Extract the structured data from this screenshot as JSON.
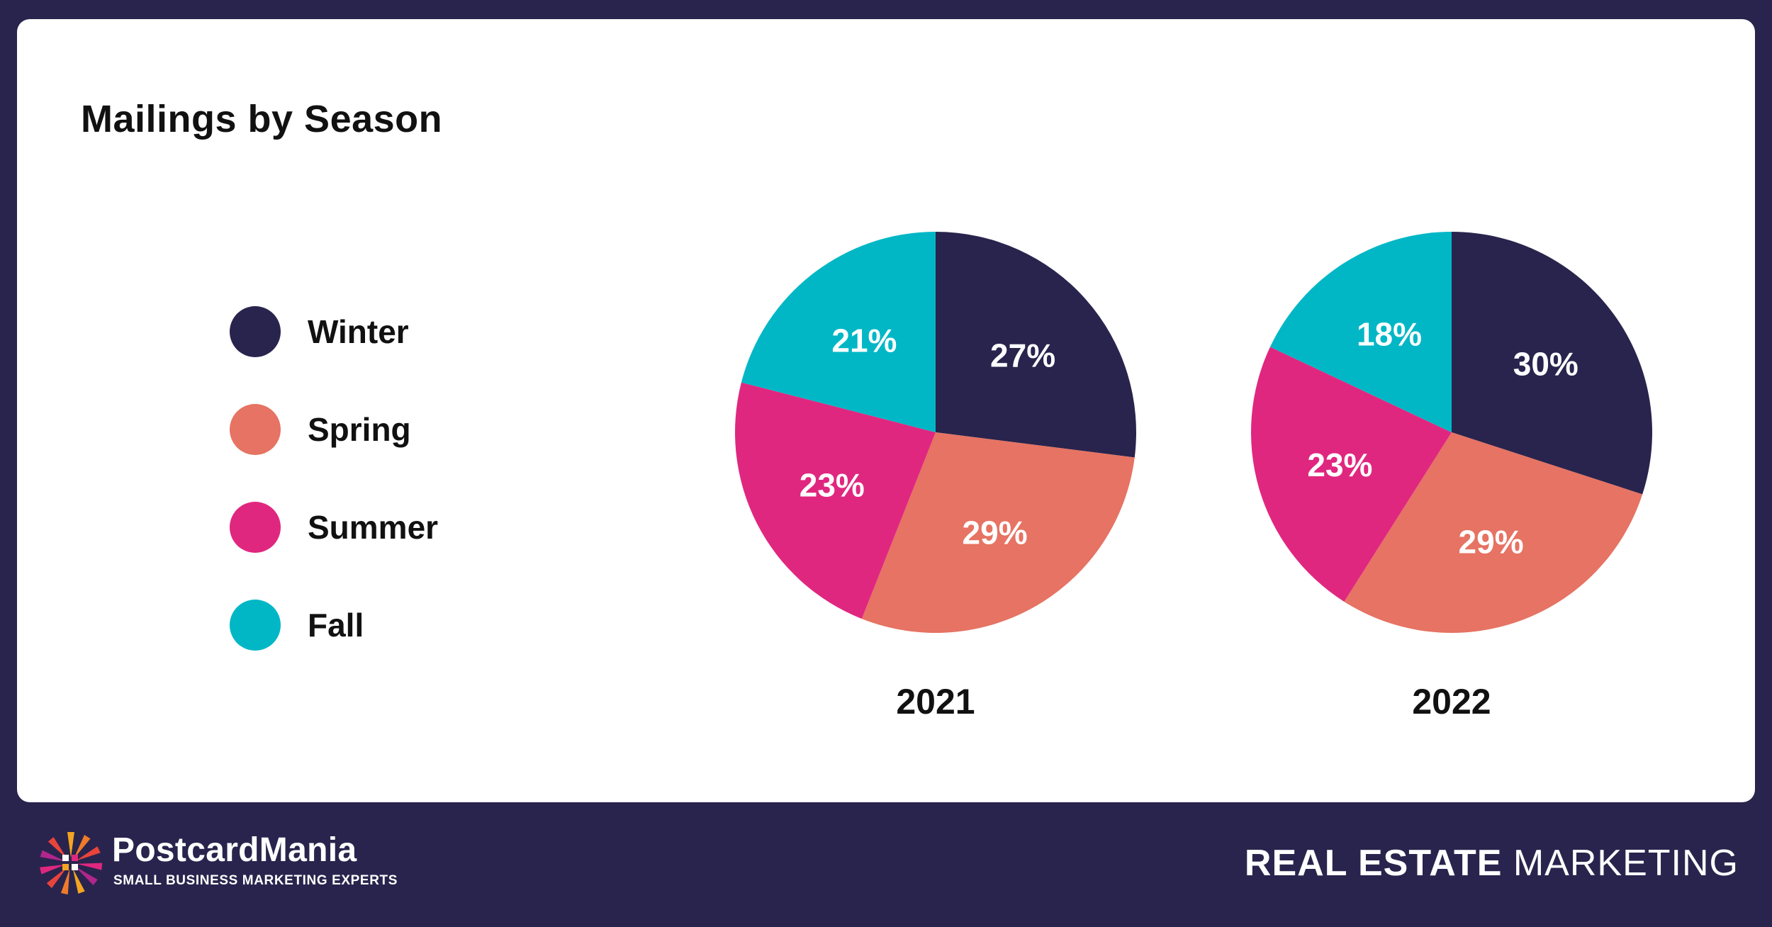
{
  "title": "Mailings by Season",
  "legend": [
    {
      "label": "Winter",
      "color": "#29244d"
    },
    {
      "label": "Spring",
      "color": "#e67363"
    },
    {
      "label": "Summer",
      "color": "#e0277f"
    },
    {
      "label": "Fall",
      "color": "#01b7c6"
    }
  ],
  "chart_data": [
    {
      "type": "pie",
      "title": "2021",
      "categories": [
        "Winter",
        "Spring",
        "Summer",
        "Fall"
      ],
      "values": [
        27,
        29,
        23,
        21
      ],
      "labels": [
        "27%",
        "29%",
        "23%",
        "21%"
      ]
    },
    {
      "type": "pie",
      "title": "2022",
      "categories": [
        "Winter",
        "Spring",
        "Summer",
        "Fall"
      ],
      "values": [
        30,
        29,
        23,
        18
      ],
      "labels": [
        "30%",
        "29%",
        "23%",
        "18%"
      ]
    }
  ],
  "footer": {
    "brand_name": "PostcardMania",
    "brand_tagline": "SMALL BUSINESS MARKETING EXPERTS",
    "right_bold": "REAL ESTATE",
    "right_light": "MARKETING"
  },
  "colors": {
    "background": "#29244d",
    "card": "#ffffff",
    "text": "#111111",
    "slice_label": "#ffffff"
  }
}
